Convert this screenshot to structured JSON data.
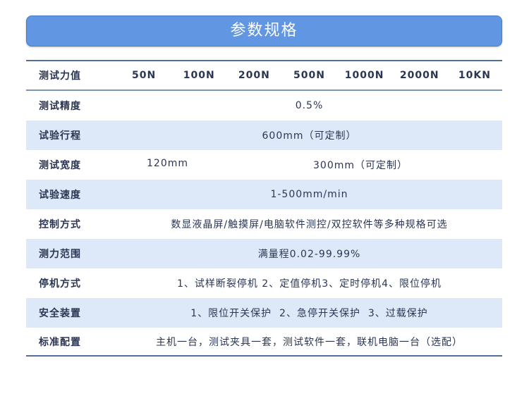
{
  "title": "参数规格",
  "header": {
    "label": "测试力值",
    "values": [
      "50N",
      "100N",
      "200N",
      "500N",
      "1000N",
      "2000N",
      "10KN"
    ]
  },
  "rows": [
    {
      "label": "测试精度",
      "value": "0.5%"
    },
    {
      "label": "试验行程",
      "value": "600mm（可定制）"
    },
    {
      "label": "测试宽度",
      "values": [
        "120mm",
        "300mm（可定制）"
      ]
    },
    {
      "label": "试验速度",
      "value": "1-500mm/min"
    },
    {
      "label": "控制方式",
      "value": "数显液晶屏/触摸屏/电脑软件测控/双控软件等多种规格可选"
    },
    {
      "label": "测力范围",
      "value": "满量程0.02-99.99%"
    },
    {
      "label": "停机方式",
      "value": "1、试样断裂停机 2、定值停机3、定时停机4、限位停机"
    },
    {
      "label": "安全装置",
      "value": "1、限位开关保护  2、急停开关保护  3、过载保护"
    },
    {
      "label": "标准配置",
      "value": "主机一台，测试夹具一套，测试软件一套，联机电脑一台（选配）"
    }
  ]
}
